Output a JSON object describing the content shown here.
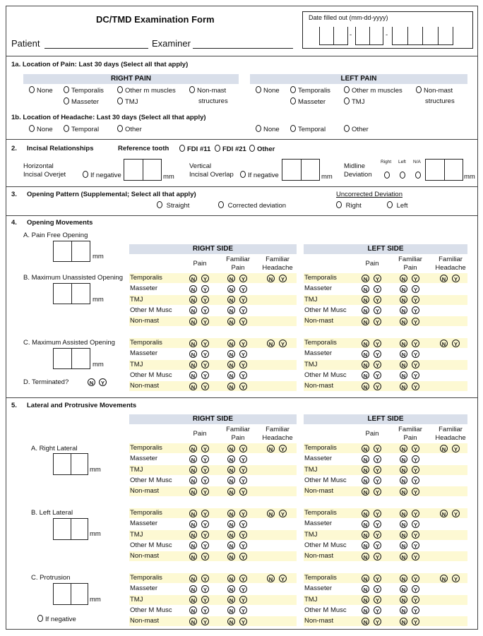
{
  "header": {
    "title": "DC/TMD Examination Form",
    "patient_label": "Patient",
    "examiner_label": "Examiner",
    "date_label": "Date filled out (mm-dd-yyyy)",
    "date_sep": "-"
  },
  "s1a": {
    "heading": "1a.  Location of Pain: Last 30 days (Select all that apply)",
    "right_title": "RIGHT PAIN",
    "left_title": "LEFT PAIN",
    "options": [
      "None",
      "Temporalis",
      "Other m muscles",
      "Non-mast",
      "Masseter",
      "TMJ"
    ],
    "structures": "structures"
  },
  "s1b": {
    "heading": "1b.  Location of Headache: Last 30 days (Select all that apply)",
    "options": [
      "None",
      "Temporal",
      "Other"
    ]
  },
  "s2": {
    "number": "2.",
    "heading": "Incisal Relationships",
    "ref_label": "Reference tooth",
    "ref_options": [
      "FDI #11",
      "FDI #21",
      "Other"
    ],
    "horizontal": [
      "Horizontal",
      "Incisal Overjet"
    ],
    "vertical": [
      "Vertical",
      "Incisal Overlap"
    ],
    "midline": [
      "Midline",
      "Deviation"
    ],
    "midline_options": [
      "Right",
      "Left",
      "N/A"
    ],
    "if_negative": "If negative",
    "mm": "mm"
  },
  "s3": {
    "number": "3.",
    "heading": "Opening Pattern (Supplemental; Select all that apply)",
    "options": [
      "Straight",
      "Corrected deviation"
    ],
    "uncorrected_title": "Uncorrected Deviation",
    "uncorrected_options": [
      "Right",
      "Left"
    ]
  },
  "s4": {
    "number": "4.",
    "heading": "Opening Movements",
    "a": "A. Pain Free Opening",
    "b": "B. Maximum Unassisted Opening",
    "c": "C. Maximum Assisted Opening",
    "d": "D. Terminated?"
  },
  "s5": {
    "number": "5.",
    "heading": "Lateral and Protrusive Movements",
    "a": "A. Right Lateral",
    "b": "B. Left Lateral",
    "c": "C. Protrusion",
    "if_negative": "If negative"
  },
  "table": {
    "right_title": "RIGHT SIDE",
    "left_title": "LEFT SIDE",
    "col_pain": "Pain",
    "col_fam_pain": [
      "Familiar",
      "Pain"
    ],
    "col_fam_headache": [
      "Familiar",
      "Headache"
    ],
    "rows": [
      "Temporalis",
      "Masseter",
      "TMJ",
      "Other M Musc",
      "Non-mast"
    ],
    "n": "N",
    "y": "Y",
    "mm": "mm"
  },
  "colors": {
    "band": "#d9dfea",
    "row_highlight": "#fdf9d3",
    "border": "#444444"
  }
}
